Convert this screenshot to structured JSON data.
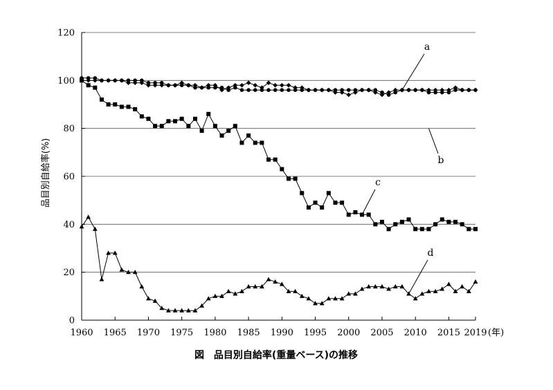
{
  "caption": "図　品目別自給率(重量ベース)の推移",
  "chart_data": {
    "type": "line",
    "title": "図　品目別自給率(重量ベース)の推移",
    "ylabel": "品目別自給率(%)",
    "xlabel": "",
    "x_unit": "(年)",
    "xlim": [
      1960,
      2019
    ],
    "ylim": [
      0,
      120
    ],
    "xticks": [
      "1960",
      "1965",
      "1970",
      "1975",
      "1980",
      "1985",
      "1990",
      "1995",
      "2000",
      "2005",
      "2010",
      "2015",
      "2019"
    ],
    "yticks": [
      "0",
      "20",
      "40",
      "60",
      "80",
      "100",
      "120"
    ],
    "grid": "horizontal",
    "x": [
      1960,
      1961,
      1962,
      1963,
      1964,
      1965,
      1966,
      1967,
      1968,
      1969,
      1970,
      1971,
      1972,
      1973,
      1974,
      1975,
      1976,
      1977,
      1978,
      1979,
      1980,
      1981,
      1982,
      1983,
      1984,
      1985,
      1986,
      1987,
      1988,
      1989,
      1990,
      1991,
      1992,
      1993,
      1994,
      1995,
      1996,
      1997,
      1998,
      1999,
      2000,
      2001,
      2002,
      2003,
      2004,
      2005,
      2006,
      2007,
      2008,
      2009,
      2010,
      2011,
      2012,
      2013,
      2014,
      2015,
      2016,
      2017,
      2018,
      2019
    ],
    "series": [
      {
        "name": "a",
        "marker": "circle",
        "values": [
          101,
          101,
          101,
          100,
          100,
          100,
          100,
          100,
          100,
          100,
          99,
          99,
          99,
          98,
          98,
          98,
          98,
          97,
          97,
          97,
          97,
          97,
          96,
          97,
          96,
          96,
          96,
          96,
          96,
          96,
          96,
          96,
          96,
          96,
          96,
          96,
          96,
          96,
          96,
          96,
          96,
          96,
          96,
          96,
          96,
          95,
          94,
          95,
          96,
          96,
          96,
          96,
          95,
          95,
          95,
          95,
          96,
          96,
          96,
          96
        ]
      },
      {
        "name": "b",
        "marker": "diamond",
        "values": [
          100,
          100,
          100,
          100,
          100,
          100,
          100,
          99,
          99,
          99,
          98,
          98,
          98,
          98,
          98,
          99,
          98,
          98,
          97,
          98,
          98,
          96,
          97,
          98,
          98,
          99,
          98,
          97,
          99,
          98,
          98,
          98,
          97,
          97,
          96,
          96,
          96,
          96,
          95,
          95,
          94,
          95,
          96,
          96,
          95,
          94,
          95,
          96,
          96,
          96,
          96,
          96,
          96,
          96,
          96,
          96,
          97,
          96,
          96,
          96
        ]
      },
      {
        "name": "c",
        "marker": "square",
        "values": [
          100,
          98,
          97,
          92,
          90,
          90,
          89,
          89,
          88,
          85,
          84,
          81,
          81,
          83,
          83,
          84,
          81,
          84,
          79,
          86,
          81,
          77,
          79,
          81,
          74,
          77,
          74,
          74,
          67,
          67,
          63,
          59,
          59,
          53,
          47,
          49,
          47,
          53,
          49,
          49,
          44,
          45,
          44,
          44,
          40,
          41,
          38,
          40,
          41,
          42,
          38,
          38,
          38,
          40,
          42,
          41,
          41,
          40,
          38,
          38
        ]
      },
      {
        "name": "d",
        "marker": "triangle",
        "values": [
          39,
          43,
          38,
          17,
          28,
          28,
          21,
          20,
          20,
          14,
          9,
          8,
          5,
          4,
          4,
          4,
          4,
          4,
          6,
          9,
          10,
          10,
          12,
          11,
          12,
          14,
          14,
          14,
          17,
          16,
          15,
          12,
          12,
          10,
          9,
          7,
          7,
          9,
          9,
          9,
          11,
          11,
          13,
          14,
          14,
          14,
          13,
          14,
          14,
          11,
          9,
          11,
          12,
          12,
          13,
          15,
          12,
          14,
          12,
          16
        ]
      }
    ],
    "series_b_values_note_removed": null,
    "series_labels": [
      {
        "text": "a",
        "series": "a"
      },
      {
        "text": "b",
        "series": "b"
      },
      {
        "text": "c",
        "series": "c"
      },
      {
        "text": "d",
        "series": "d"
      }
    ]
  }
}
